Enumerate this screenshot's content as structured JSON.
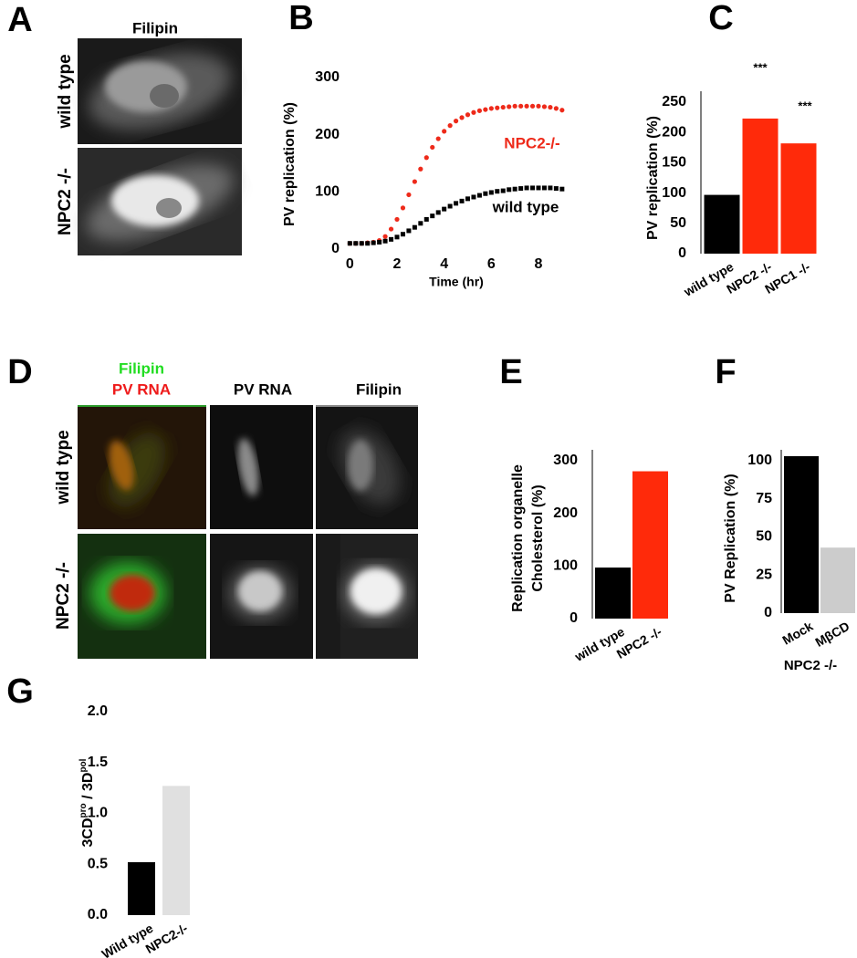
{
  "image_panels": [
    {
      "panel": "A",
      "columns": [
        {
          "lines": [
            {
              "text": "Filipin",
              "color": "#000000"
            }
          ]
        }
      ],
      "rows": [
        "wild type",
        "NPC2 -/-"
      ]
    },
    {
      "panel": "D",
      "columns": [
        {
          "lines": [
            {
              "text": "Filipin",
              "color": "#22dd22"
            },
            {
              "text": "PV RNA",
              "color": "#ee1a1a"
            }
          ]
        },
        {
          "lines": [
            {
              "text": "PV RNA",
              "color": "#000000"
            }
          ]
        },
        {
          "lines": [
            {
              "text": "Filipin",
              "color": "#000000"
            }
          ]
        }
      ],
      "rows": [
        "wild type",
        "NPC2 -/-"
      ]
    }
  ],
  "chart_data": [
    {
      "type": "line",
      "panel": "B",
      "xlabel": "Time (hr)",
      "ylabel": [
        "PV replication (%)"
      ],
      "x": [
        0,
        0.25,
        0.5,
        0.75,
        1,
        1.25,
        1.5,
        1.75,
        2,
        2.25,
        2.5,
        2.75,
        3,
        3.25,
        3.5,
        3.75,
        4,
        4.25,
        4.5,
        4.75,
        5,
        5.25,
        5.5,
        5.75,
        6,
        6.25,
        6.5,
        6.75,
        7,
        7.25,
        7.5,
        7.75,
        8,
        8.25,
        8.5,
        8.75,
        9
      ],
      "series": [
        {
          "name": "NPC2-/-",
          "color": "#ee2a1a",
          "marker": "circle",
          "values": [
            10,
            10,
            10,
            11,
            12,
            15,
            22,
            35,
            52,
            72,
            95,
            118,
            140,
            160,
            178,
            193,
            206,
            216,
            224,
            230,
            235,
            239,
            242,
            244,
            246,
            247,
            248,
            249,
            250,
            250,
            250,
            250,
            250,
            249,
            248,
            246,
            243
          ]
        },
        {
          "name": "wild type",
          "color": "#000000",
          "marker": "square",
          "values": [
            10,
            10,
            10,
            10,
            11,
            12,
            14,
            17,
            21,
            26,
            32,
            38,
            45,
            52,
            58,
            64,
            70,
            75,
            80,
            84,
            88,
            91,
            94,
            97,
            99,
            101,
            102,
            104,
            105,
            106,
            107,
            107,
            107,
            107,
            107,
            106,
            105
          ]
        }
      ],
      "xlim": [
        -0.4,
        9.2
      ],
      "xticks": [
        0,
        2,
        4,
        6,
        8
      ],
      "ylim": [
        0,
        300
      ],
      "yticks": [
        0,
        100,
        200,
        300
      ]
    },
    {
      "type": "bar",
      "panel": "C",
      "ylabel": [
        "PV replication (%)"
      ],
      "categories": [
        "wild type",
        "NPC2 -/-",
        "NPC1 -/-"
      ],
      "values": [
        97,
        223,
        182
      ],
      "colors": [
        "#000000",
        "#ff2a0a",
        "#ff2a0a"
      ],
      "significance": [
        null,
        "***",
        "***"
      ],
      "ylim": [
        0,
        250
      ],
      "yticks": [
        0,
        50,
        100,
        150,
        200,
        250
      ],
      "axis_line": true
    },
    {
      "type": "bar",
      "panel": "E",
      "ylabel": [
        "Replication organelle",
        "Cholesterol (%)"
      ],
      "categories": [
        "wild type",
        "NPC2 -/-"
      ],
      "values": [
        97,
        280
      ],
      "colors": [
        "#000000",
        "#ff2a0a"
      ],
      "ylim": [
        0,
        300
      ],
      "yticks": [
        0,
        100,
        200,
        300
      ],
      "axis_line": true
    },
    {
      "type": "bar",
      "panel": "F",
      "ylabel": [
        "PV Replication (%)"
      ],
      "xlabel": "NPC2 -/-",
      "categories": [
        "Mock",
        "MβCD"
      ],
      "values": [
        103,
        43
      ],
      "colors": [
        "#000000",
        "#cccccc"
      ],
      "ylim": [
        0,
        100
      ],
      "yticks": [
        0,
        25,
        50,
        75,
        100
      ],
      "axis_line": true
    },
    {
      "type": "bar",
      "panel": "G",
      "ylabel_parts": [
        "3CD",
        "pro",
        " / 3D",
        "pol"
      ],
      "categories": [
        "Wild type",
        "NPC2-/-"
      ],
      "values": [
        0.52,
        1.27
      ],
      "colors": [
        "#000000",
        "#e0e0e0"
      ],
      "ylim": [
        0,
        2
      ],
      "yticks": [
        {
          "value": 0,
          "label": "0.0"
        },
        {
          "value": 0.5,
          "label": "0.5"
        },
        {
          "value": 1,
          "label": "1.0"
        },
        {
          "value": 1.5,
          "label": "1.5"
        },
        {
          "value": 2,
          "label": "2.0"
        }
      ],
      "axis_line": false
    }
  ]
}
